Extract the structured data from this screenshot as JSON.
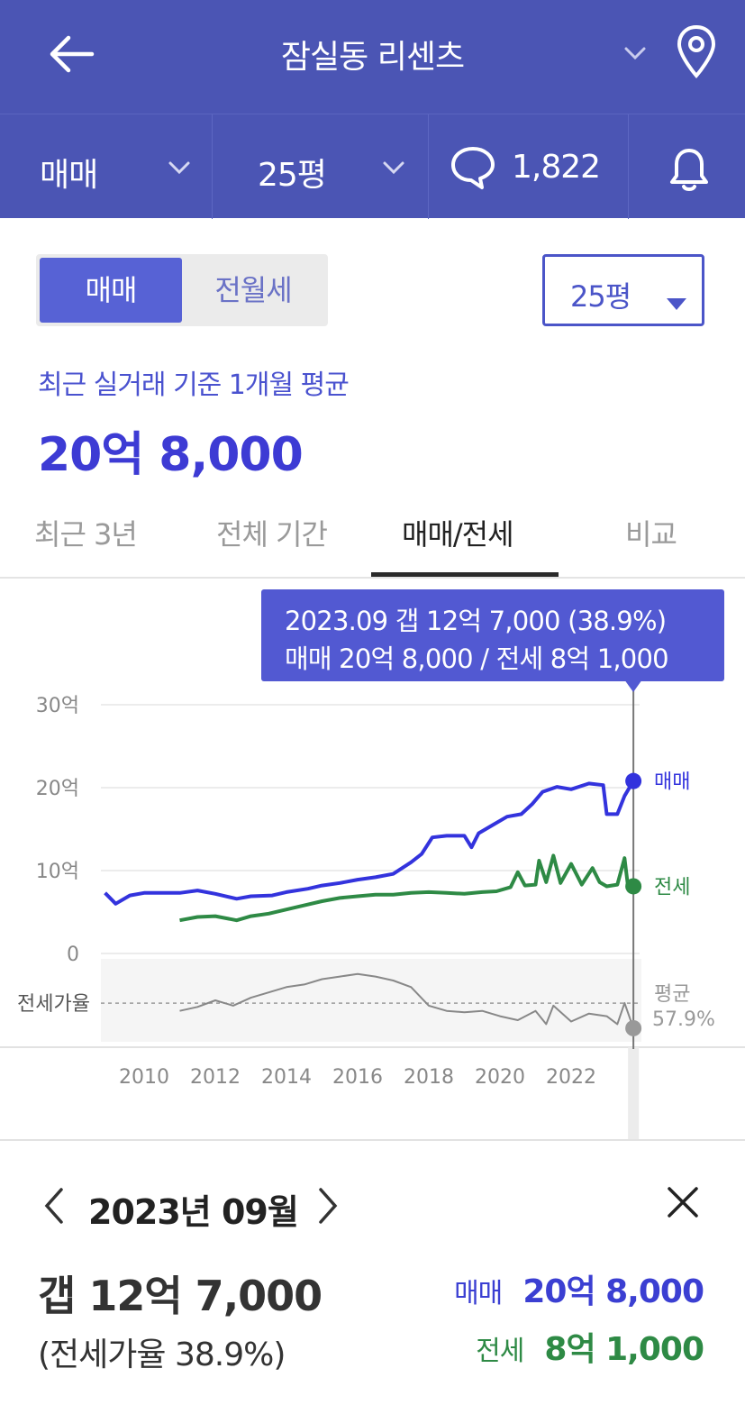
{
  "header": {
    "title": "잠실동 리센츠",
    "filters": {
      "trade_type": "매매",
      "size": "25평",
      "comment_count": "1,822"
    }
  },
  "segment": {
    "options": [
      "매매",
      "전월세"
    ],
    "selected": "매매"
  },
  "size_select": {
    "value": "25평"
  },
  "summary": {
    "label": "최근 실거래 기준 1개월 평균",
    "value": "20억 8,000"
  },
  "tabs": {
    "items": [
      "최근 3년",
      "전체 기간",
      "매매/전세",
      "비교"
    ],
    "active": "매매/전세"
  },
  "tooltip": {
    "line1": "2023.09  갭 12억 7,000 (38.9%)",
    "line2": "매매 20억 8,000 / 전세 8억 1,000"
  },
  "chart_data": {
    "type": "line",
    "x_ticks": [
      "2010",
      "2012",
      "2014",
      "2016",
      "2018",
      "2020",
      "2022"
    ],
    "y_ticks": [
      "30억",
      "20억",
      "10억",
      "0"
    ],
    "ylim": [
      0,
      30
    ],
    "y_unit": "억",
    "series": [
      {
        "name": "매매",
        "color": "#3333dd",
        "points": [
          [
            2008.9,
            7.3
          ],
          [
            2009.2,
            6.0
          ],
          [
            2009.6,
            7.0
          ],
          [
            2010.0,
            7.3
          ],
          [
            2011.0,
            7.3
          ],
          [
            2011.5,
            7.6
          ],
          [
            2012.0,
            7.2
          ],
          [
            2012.6,
            6.6
          ],
          [
            2013.0,
            6.9
          ],
          [
            2013.6,
            7.0
          ],
          [
            2014.0,
            7.4
          ],
          [
            2014.6,
            7.8
          ],
          [
            2015.0,
            8.2
          ],
          [
            2015.5,
            8.5
          ],
          [
            2016.0,
            8.9
          ],
          [
            2016.5,
            9.2
          ],
          [
            2017.0,
            9.6
          ],
          [
            2017.5,
            11.0
          ],
          [
            2017.8,
            12.0
          ],
          [
            2018.1,
            14.0
          ],
          [
            2018.5,
            14.2
          ],
          [
            2019.0,
            14.2
          ],
          [
            2019.2,
            12.8
          ],
          [
            2019.4,
            14.5
          ],
          [
            2019.8,
            15.5
          ],
          [
            2020.2,
            16.5
          ],
          [
            2020.6,
            16.8
          ],
          [
            2020.9,
            18.0
          ],
          [
            2021.2,
            19.5
          ],
          [
            2021.6,
            20.1
          ],
          [
            2022.0,
            19.8
          ],
          [
            2022.5,
            20.5
          ],
          [
            2022.9,
            20.3
          ],
          [
            2023.0,
            16.8
          ],
          [
            2023.3,
            16.8
          ],
          [
            2023.5,
            19.0
          ],
          [
            2023.75,
            20.8
          ]
        ]
      },
      {
        "name": "전세",
        "color": "#2e8a45",
        "points": [
          [
            2011.0,
            4.0
          ],
          [
            2011.5,
            4.4
          ],
          [
            2012.0,
            4.5
          ],
          [
            2012.6,
            4.0
          ],
          [
            2013.0,
            4.5
          ],
          [
            2013.5,
            4.8
          ],
          [
            2014.0,
            5.3
          ],
          [
            2014.5,
            5.8
          ],
          [
            2015.0,
            6.3
          ],
          [
            2015.5,
            6.7
          ],
          [
            2016.0,
            6.9
          ],
          [
            2016.5,
            7.1
          ],
          [
            2017.0,
            7.1
          ],
          [
            2017.5,
            7.3
          ],
          [
            2018.0,
            7.4
          ],
          [
            2018.5,
            7.3
          ],
          [
            2019.0,
            7.2
          ],
          [
            2019.5,
            7.4
          ],
          [
            2019.9,
            7.5
          ],
          [
            2020.3,
            8.0
          ],
          [
            2020.5,
            9.8
          ],
          [
            2020.7,
            8.2
          ],
          [
            2021.0,
            8.3
          ],
          [
            2021.1,
            11.2
          ],
          [
            2021.3,
            8.6
          ],
          [
            2021.5,
            11.8
          ],
          [
            2021.7,
            8.5
          ],
          [
            2022.0,
            10.8
          ],
          [
            2022.3,
            8.3
          ],
          [
            2022.6,
            10.3
          ],
          [
            2022.8,
            8.6
          ],
          [
            2023.0,
            8.1
          ],
          [
            2023.3,
            8.3
          ],
          [
            2023.5,
            11.5
          ],
          [
            2023.6,
            8.0
          ],
          [
            2023.75,
            8.1
          ]
        ]
      },
      {
        "name": "전세가율",
        "color": "#888888",
        "points": [
          [
            2011.0,
            52
          ],
          [
            2011.5,
            55
          ],
          [
            2012.0,
            60
          ],
          [
            2012.5,
            56
          ],
          [
            2013.0,
            62
          ],
          [
            2013.5,
            66
          ],
          [
            2014.0,
            70
          ],
          [
            2014.5,
            72
          ],
          [
            2015.0,
            76
          ],
          [
            2015.5,
            78
          ],
          [
            2016.0,
            80
          ],
          [
            2016.5,
            78
          ],
          [
            2017.0,
            75
          ],
          [
            2017.5,
            70
          ],
          [
            2018.0,
            56
          ],
          [
            2018.5,
            52
          ],
          [
            2019.0,
            51
          ],
          [
            2019.5,
            52
          ],
          [
            2020.0,
            48
          ],
          [
            2020.5,
            45
          ],
          [
            2021.0,
            52
          ],
          [
            2021.3,
            42
          ],
          [
            2021.5,
            56
          ],
          [
            2022.0,
            44
          ],
          [
            2022.5,
            50
          ],
          [
            2023.0,
            48
          ],
          [
            2023.3,
            42
          ],
          [
            2023.5,
            58
          ],
          [
            2023.75,
            38.9
          ]
        ]
      }
    ],
    "ratio_axis_label": "전세가율",
    "ratio_average_label": "평균",
    "ratio_average_value": "57.9%",
    "selected_x": 2023.75,
    "end_labels": [
      "매매",
      "전세"
    ]
  },
  "detail": {
    "month": "2023년 09월",
    "gap": "갭 12억 7,000",
    "ratio": "(전세가율 38.9%)",
    "sale_label": "매매",
    "sale_value": "20억 8,000",
    "jeonse_label": "전세",
    "jeonse_value": "8억 1,000"
  }
}
